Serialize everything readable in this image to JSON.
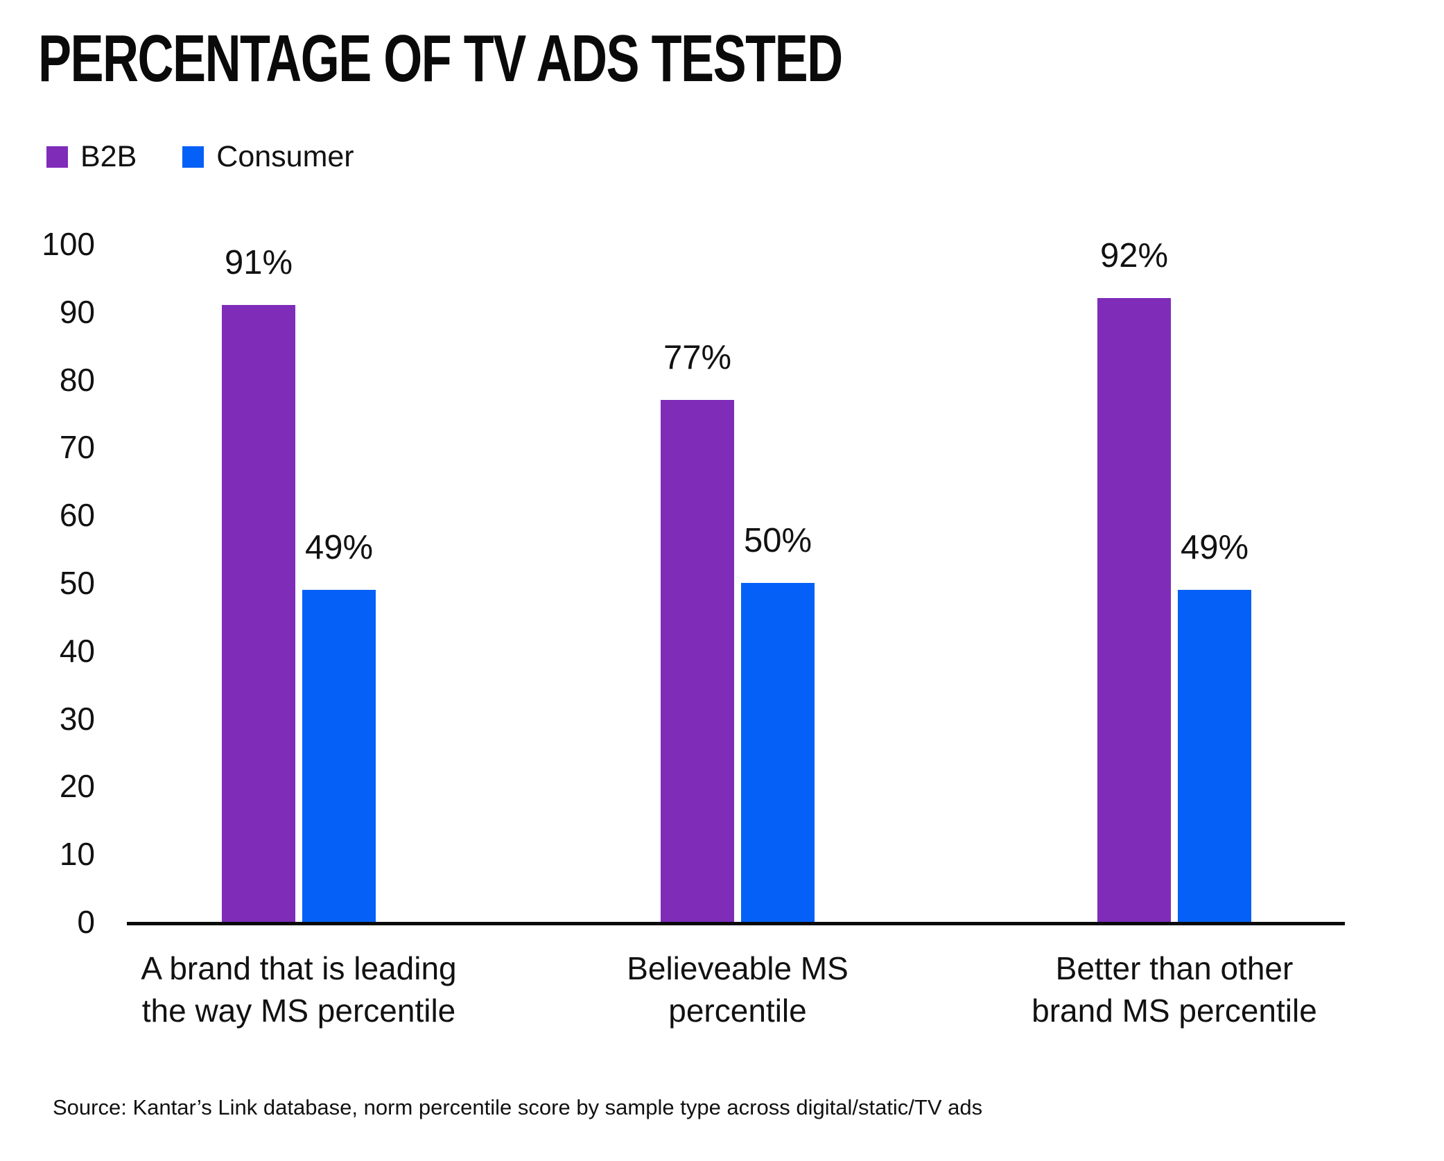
{
  "title": "PERCENTAGE OF TV ADS TESTED",
  "source": "Source: Kantar’s Link database, norm percentile score by sample type across digital/static/TV ads",
  "colors": {
    "b2b_purple": "#7f2cb9",
    "consumer_blue": "#0560f8",
    "axis_black": "#0a0a0a",
    "text_black": "#111111",
    "background": "#ffffff"
  },
  "chart_data": {
    "type": "bar",
    "title": "PERCENTAGE OF TV ADS TESTED",
    "xlabel": "",
    "ylabel": "",
    "ylim": [
      0,
      100
    ],
    "yticks": [
      0,
      10,
      20,
      30,
      40,
      50,
      60,
      70,
      80,
      90,
      100
    ],
    "grid": false,
    "legend_position": "top-left",
    "value_label_format": "percent",
    "categories": [
      [
        "A brand that is leading",
        "the way MS percentile"
      ],
      [
        "Believeable MS",
        "percentile"
      ],
      [
        "Better than other",
        "brand MS percentile"
      ]
    ],
    "series": [
      {
        "name": "B2B",
        "color": "#7f2cb9",
        "values": [
          91,
          77,
          92
        ],
        "labels": [
          "91%",
          "77%",
          "92%"
        ]
      },
      {
        "name": "Consumer",
        "color": "#0560f8",
        "values": [
          49,
          50,
          49
        ],
        "labels": [
          "49%",
          "50%",
          "49%"
        ]
      }
    ]
  }
}
